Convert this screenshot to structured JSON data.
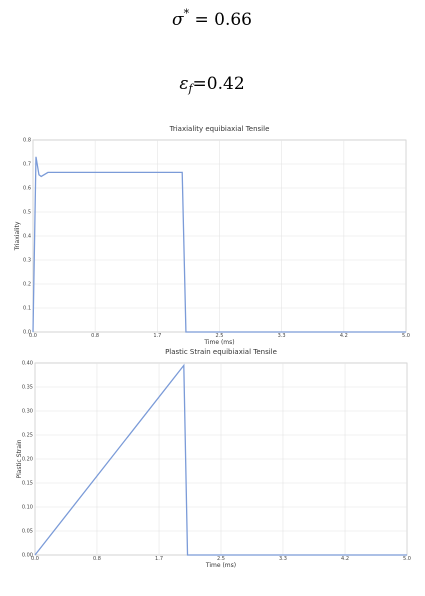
{
  "header": {
    "sigma": {
      "symbol": "σ",
      "superscript": "*",
      "value": " = 0.66"
    },
    "epsilon": {
      "symbol": "ε",
      "subscript": "f",
      "value": "=0.42"
    }
  },
  "chart_data": [
    {
      "type": "line",
      "title": "Triaxiality  equibiaxial Tensile",
      "xlabel": "Time (ms)",
      "ylabel": "Triaxiality",
      "x": [
        0,
        0.04,
        0.08,
        0.11,
        0.2,
        0.4,
        1.0,
        2.0,
        2.05,
        2.2,
        5.0
      ],
      "series": [
        {
          "name": "Triaxiality",
          "color": "#7b9bd8",
          "values": [
            0,
            0.73,
            0.655,
            0.648,
            0.665,
            0.665,
            0.665,
            0.665,
            0,
            0,
            0
          ]
        }
      ],
      "xlim": [
        0,
        5.0
      ],
      "xticks": [
        {
          "value": 0,
          "label": "0.0"
        },
        {
          "value": 0.833,
          "label": "0.8"
        },
        {
          "value": 1.667,
          "label": "1.7"
        },
        2.5,
        {
          "value": 3.333,
          "label": "3.3"
        },
        {
          "value": 4.167,
          "label": "4.2"
        },
        {
          "value": 5,
          "label": "5.0"
        }
      ],
      "ylim": [
        0,
        0.8
      ],
      "yticks": [
        {
          "value": 0,
          "label": "0.0"
        },
        0.1,
        0.2,
        0.3,
        0.4,
        0.5,
        0.6,
        0.7,
        0.8
      ],
      "grid": true
    },
    {
      "type": "line",
      "title": "Plastic Strain  equibiaxial Tensile",
      "xlabel": "Time (ms)",
      "ylabel": "Plastic Strain",
      "x": [
        0,
        2.0,
        2.05,
        5.0
      ],
      "series": [
        {
          "name": "Plastic Strain",
          "color": "#7b9bd8",
          "values": [
            0,
            0.395,
            0,
            0
          ]
        }
      ],
      "xlim": [
        0,
        5.0
      ],
      "xticks": [
        {
          "value": 0,
          "label": "0.0"
        },
        {
          "value": 0.833,
          "label": "0.8"
        },
        {
          "value": 1.667,
          "label": "1.7"
        },
        2.5,
        {
          "value": 3.333,
          "label": "3.3"
        },
        {
          "value": 4.167,
          "label": "4.2"
        },
        {
          "value": 5,
          "label": "5.0"
        }
      ],
      "ylim": [
        0,
        0.4
      ],
      "yticks": [
        {
          "value": 0,
          "label": "0.00"
        },
        0.05,
        {
          "value": 0.1,
          "label": "0.10"
        },
        0.15,
        {
          "value": 0.2,
          "label": "0.20"
        },
        0.25,
        {
          "value": 0.3,
          "label": "0.30"
        },
        0.35,
        {
          "value": 0.4,
          "label": "0.40"
        }
      ],
      "grid": true
    }
  ]
}
